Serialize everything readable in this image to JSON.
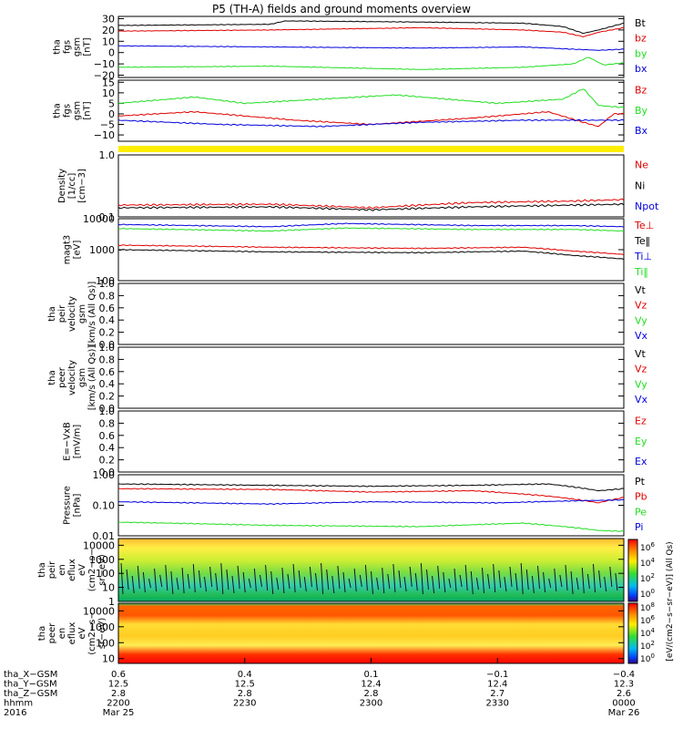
{
  "title": "P5 (TH-A) fields and ground moments overview",
  "colors": {
    "black": "#000000",
    "red": "#e00000",
    "green": "#22dd22",
    "blue": "#0000dd",
    "yellow": "#ffee00"
  },
  "chart_data": [
    {
      "type": "line",
      "ylabel": [
        "tha",
        "fgs",
        "gsm",
        "[nT]"
      ],
      "yticks": [
        "30",
        "20",
        "10",
        "0",
        "−10",
        "−20"
      ],
      "ylim": [
        -22,
        32
      ],
      "series": [
        {
          "name": "Bt",
          "color": "#000000",
          "values": [
            [
              0,
              24
            ],
            [
              0.3,
              25
            ],
            [
              0.33,
              28
            ],
            [
              0.6,
              27
            ],
            [
              0.8,
              26
            ],
            [
              0.88,
              23
            ],
            [
              0.92,
              17
            ],
            [
              0.95,
              20
            ],
            [
              1,
              26
            ]
          ]
        },
        {
          "name": "bz",
          "color": "#e00000",
          "values": [
            [
              0,
              19
            ],
            [
              0.3,
              20
            ],
            [
              0.6,
              22
            ],
            [
              0.8,
              20
            ],
            [
              0.88,
              18
            ],
            [
              0.92,
              14
            ],
            [
              0.95,
              18
            ],
            [
              1,
              22
            ]
          ]
        },
        {
          "name": "by",
          "color": "#22dd22",
          "values": [
            [
              0,
              -13
            ],
            [
              0.3,
              -12
            ],
            [
              0.6,
              -15
            ],
            [
              0.8,
              -13
            ],
            [
              0.9,
              -10
            ],
            [
              0.93,
              -4
            ],
            [
              0.96,
              -11
            ],
            [
              1,
              -9
            ]
          ]
        },
        {
          "name": "bx",
          "color": "#0000dd",
          "values": [
            [
              0,
              6
            ],
            [
              0.3,
              5
            ],
            [
              0.6,
              4
            ],
            [
              0.8,
              5
            ],
            [
              0.9,
              3
            ],
            [
              0.95,
              2
            ],
            [
              1,
              3
            ]
          ]
        }
      ]
    },
    {
      "type": "line",
      "ylabel": [
        "tha",
        "fgs",
        "gsm",
        "[nT]"
      ],
      "yticks": [
        "15",
        "10",
        "5",
        "0",
        "−5",
        "−10"
      ],
      "ylim": [
        -13,
        16
      ],
      "series": [
        {
          "name": "Bz",
          "color": "#e00000",
          "values": [
            [
              0,
              -1
            ],
            [
              0.15,
              1
            ],
            [
              0.35,
              -3
            ],
            [
              0.5,
              -5
            ],
            [
              0.7,
              -2
            ],
            [
              0.85,
              1
            ],
            [
              0.92,
              -4
            ],
            [
              0.95,
              -6
            ],
            [
              0.98,
              0
            ],
            [
              1,
              0
            ]
          ]
        },
        {
          "name": "By",
          "color": "#22dd22",
          "values": [
            [
              0,
              5
            ],
            [
              0.15,
              8
            ],
            [
              0.25,
              5
            ],
            [
              0.4,
              7
            ],
            [
              0.55,
              9
            ],
            [
              0.75,
              5
            ],
            [
              0.88,
              7
            ],
            [
              0.92,
              12
            ],
            [
              0.95,
              4
            ],
            [
              1,
              3
            ]
          ]
        },
        {
          "name": "Bx",
          "color": "#0000dd",
          "values": [
            [
              0,
              -3
            ],
            [
              0.2,
              -5
            ],
            [
              0.4,
              -6
            ],
            [
              0.6,
              -4
            ],
            [
              0.8,
              -3
            ],
            [
              0.92,
              -3
            ],
            [
              1,
              -3
            ]
          ]
        }
      ]
    },
    {
      "type": "line",
      "ylabel": [
        "Density",
        "[1/cc]",
        "[cm−3]"
      ],
      "yticks": [
        "1.0",
        "0.1"
      ],
      "ylim": [
        0.1,
        1.0
      ],
      "log": true,
      "series": [
        {
          "name": "Ne",
          "color": "#e00000",
          "values": [
            [
              0,
              0.155
            ],
            [
              0.3,
              0.16
            ],
            [
              0.5,
              0.14
            ],
            [
              0.7,
              0.17
            ],
            [
              0.9,
              0.18
            ],
            [
              1,
              0.19
            ]
          ]
        },
        {
          "name": "Ni",
          "color": "#000000",
          "values": [
            [
              0,
              0.14
            ],
            [
              0.3,
              0.145
            ],
            [
              0.5,
              0.13
            ],
            [
              0.7,
              0.145
            ],
            [
              0.9,
              0.155
            ],
            [
              1,
              0.16
            ]
          ]
        },
        {
          "name": "Npot",
          "color": "#0000dd",
          "values": []
        }
      ]
    },
    {
      "type": "line",
      "ylabel": [
        "magt3",
        "[eV]"
      ],
      "yticks": [
        "10000",
        "1000",
        "100"
      ],
      "ylim": [
        100,
        10000
      ],
      "log": true,
      "series": [
        {
          "name": "Te⊥",
          "color": "#e00000",
          "values": [
            [
              0,
              1400
            ],
            [
              0.3,
              1200
            ],
            [
              0.6,
              1100
            ],
            [
              0.8,
              1200
            ],
            [
              0.9,
              900
            ],
            [
              1,
              700
            ]
          ]
        },
        {
          "name": "Te‖",
          "color": "#000000",
          "values": [
            [
              0,
              1000
            ],
            [
              0.3,
              850
            ],
            [
              0.6,
              800
            ],
            [
              0.8,
              900
            ],
            [
              0.9,
              650
            ],
            [
              1,
              500
            ]
          ]
        },
        {
          "name": "Ti⊥",
          "color": "#0000dd",
          "values": [
            [
              0,
              6500
            ],
            [
              0.3,
              5500
            ],
            [
              0.45,
              7000
            ],
            [
              0.7,
              6000
            ],
            [
              0.9,
              6000
            ],
            [
              1,
              5500
            ]
          ]
        },
        {
          "name": "Ti‖",
          "color": "#22dd22",
          "values": [
            [
              0,
              4800
            ],
            [
              0.3,
              4000
            ],
            [
              0.45,
              5000
            ],
            [
              0.7,
              4500
            ],
            [
              0.9,
              4500
            ],
            [
              1,
              4000
            ]
          ]
        }
      ]
    },
    {
      "type": "line",
      "ylabel": [
        "tha",
        "peir",
        "velocity",
        "gsm",
        "[km/s (All Qs)]"
      ],
      "yticks": [
        "1.0",
        "0.8",
        "0.6",
        "0.4",
        "0.2",
        "0.0"
      ],
      "ylim": [
        0,
        1
      ],
      "series": [
        {
          "name": "Vt",
          "color": "#000000",
          "values": []
        },
        {
          "name": "Vz",
          "color": "#e00000",
          "values": []
        },
        {
          "name": "Vy",
          "color": "#22dd22",
          "values": []
        },
        {
          "name": "Vx",
          "color": "#0000dd",
          "values": []
        }
      ]
    },
    {
      "type": "line",
      "ylabel": [
        "tha",
        "peer",
        "velocity",
        "gsm",
        "[km/s (All Qs)]"
      ],
      "yticks": [
        "1.0",
        "0.8",
        "0.6",
        "0.4",
        "0.2",
        "0.0"
      ],
      "ylim": [
        0,
        1
      ],
      "series": [
        {
          "name": "Vt",
          "color": "#000000",
          "values": []
        },
        {
          "name": "Vz",
          "color": "#e00000",
          "values": []
        },
        {
          "name": "Vy",
          "color": "#22dd22",
          "values": []
        },
        {
          "name": "Vx",
          "color": "#0000dd",
          "values": []
        }
      ]
    },
    {
      "type": "line",
      "ylabel": [
        "E=−VxB",
        "[mV/m]"
      ],
      "yticks": [
        "1.0",
        "0.8",
        "0.6",
        "0.4",
        "0.2",
        "0.0"
      ],
      "ylim": [
        0,
        1
      ],
      "series": [
        {
          "name": "Ez",
          "color": "#e00000",
          "values": []
        },
        {
          "name": "Ey",
          "color": "#22dd22",
          "values": []
        },
        {
          "name": "Ex",
          "color": "#0000dd",
          "values": []
        }
      ]
    },
    {
      "type": "line",
      "ylabel": [
        "Pressure",
        "[nPa]"
      ],
      "yticks": [
        "1.00",
        "0.10",
        "0.01"
      ],
      "ylim": [
        0.01,
        1.0
      ],
      "log": true,
      "series": [
        {
          "name": "Pt",
          "color": "#000000",
          "values": [
            [
              0,
              0.5
            ],
            [
              0.3,
              0.45
            ],
            [
              0.5,
              0.42
            ],
            [
              0.7,
              0.45
            ],
            [
              0.85,
              0.5
            ],
            [
              0.95,
              0.3
            ],
            [
              1,
              0.35
            ]
          ]
        },
        {
          "name": "Pb",
          "color": "#e00000",
          "values": [
            [
              0,
              0.35
            ],
            [
              0.3,
              0.33
            ],
            [
              0.5,
              0.27
            ],
            [
              0.7,
              0.3
            ],
            [
              0.85,
              0.2
            ],
            [
              0.95,
              0.12
            ],
            [
              1,
              0.18
            ]
          ]
        },
        {
          "name": "Pe",
          "color": "#22dd22",
          "values": [
            [
              0,
              0.028
            ],
            [
              0.3,
              0.022
            ],
            [
              0.6,
              0.02
            ],
            [
              0.8,
              0.026
            ],
            [
              0.95,
              0.015
            ],
            [
              1,
              0.014
            ]
          ]
        },
        {
          "name": "Pi",
          "color": "#0000dd",
          "values": [
            [
              0,
              0.13
            ],
            [
              0.3,
              0.11
            ],
            [
              0.5,
              0.13
            ],
            [
              0.75,
              0.12
            ],
            [
              0.9,
              0.14
            ],
            [
              1,
              0.15
            ]
          ]
        }
      ]
    },
    {
      "type": "heatmap",
      "ylabel": [
        "tha",
        "peir",
        "en",
        "eflux",
        "eV",
        "(cm2−s−",
        "sr−eV)"
      ],
      "yticks": [
        "10000",
        "1000",
        "100",
        "10",
        "1"
      ],
      "ylim": [
        1,
        30000
      ],
      "log": true
    },
    {
      "type": "heatmap",
      "ylabel": [
        "tha",
        "peer",
        "en",
        "eflux",
        "eV",
        "(cm2−s−",
        "sr−eV)"
      ],
      "yticks": [
        "10000",
        "1000",
        "100",
        "10"
      ],
      "ylim": [
        5,
        30000
      ],
      "log": true
    }
  ],
  "right_labels": [
    [
      "Bt",
      "bz",
      "by",
      "bx"
    ],
    [
      "Bz",
      "By",
      "Bx"
    ],
    [
      "Ne",
      "Ni",
      "Npot"
    ],
    [
      "Te⊥",
      "Te‖",
      "Ti⊥",
      "Ti‖"
    ],
    [
      "Vt",
      "Vz",
      "Vy",
      "Vx"
    ],
    [
      "Vt",
      "Vz",
      "Vy",
      "Vx"
    ],
    [
      "Ez",
      "Ey",
      "Ex"
    ],
    [
      "Pt",
      "Pb",
      "Pe",
      "Pi"
    ]
  ],
  "colorbar": {
    "label": "[eV/(cm2−s−sr−eV)] (All Qs)",
    "ticks_top": [
      "10^6",
      "10^4",
      "10^2",
      "10^0"
    ],
    "ticks_bottom": [
      "10^8",
      "10^6",
      "10^4",
      "10^2",
      "10^0"
    ]
  },
  "x_axis": {
    "row_labels": [
      "tha_X−GSM",
      "tha_Y−GSM",
      "tha_Z−GSM",
      "hhmm",
      "2016"
    ],
    "columns": [
      {
        "x": "0.6",
        "y": "12.5",
        "z": "2.8",
        "t": "2200",
        "d": "Mar 25"
      },
      {
        "x": "0.4",
        "y": "12.5",
        "z": "2.8",
        "t": "2230",
        "d": ""
      },
      {
        "x": "0.1",
        "y": "12.4",
        "z": "2.8",
        "t": "2300",
        "d": ""
      },
      {
        "x": "−0.1",
        "y": "12.4",
        "z": "2.7",
        "t": "2330",
        "d": ""
      },
      {
        "x": "−0.4",
        "y": "12.3",
        "z": "2.6",
        "t": "0000",
        "d": "Mar 26"
      }
    ]
  }
}
